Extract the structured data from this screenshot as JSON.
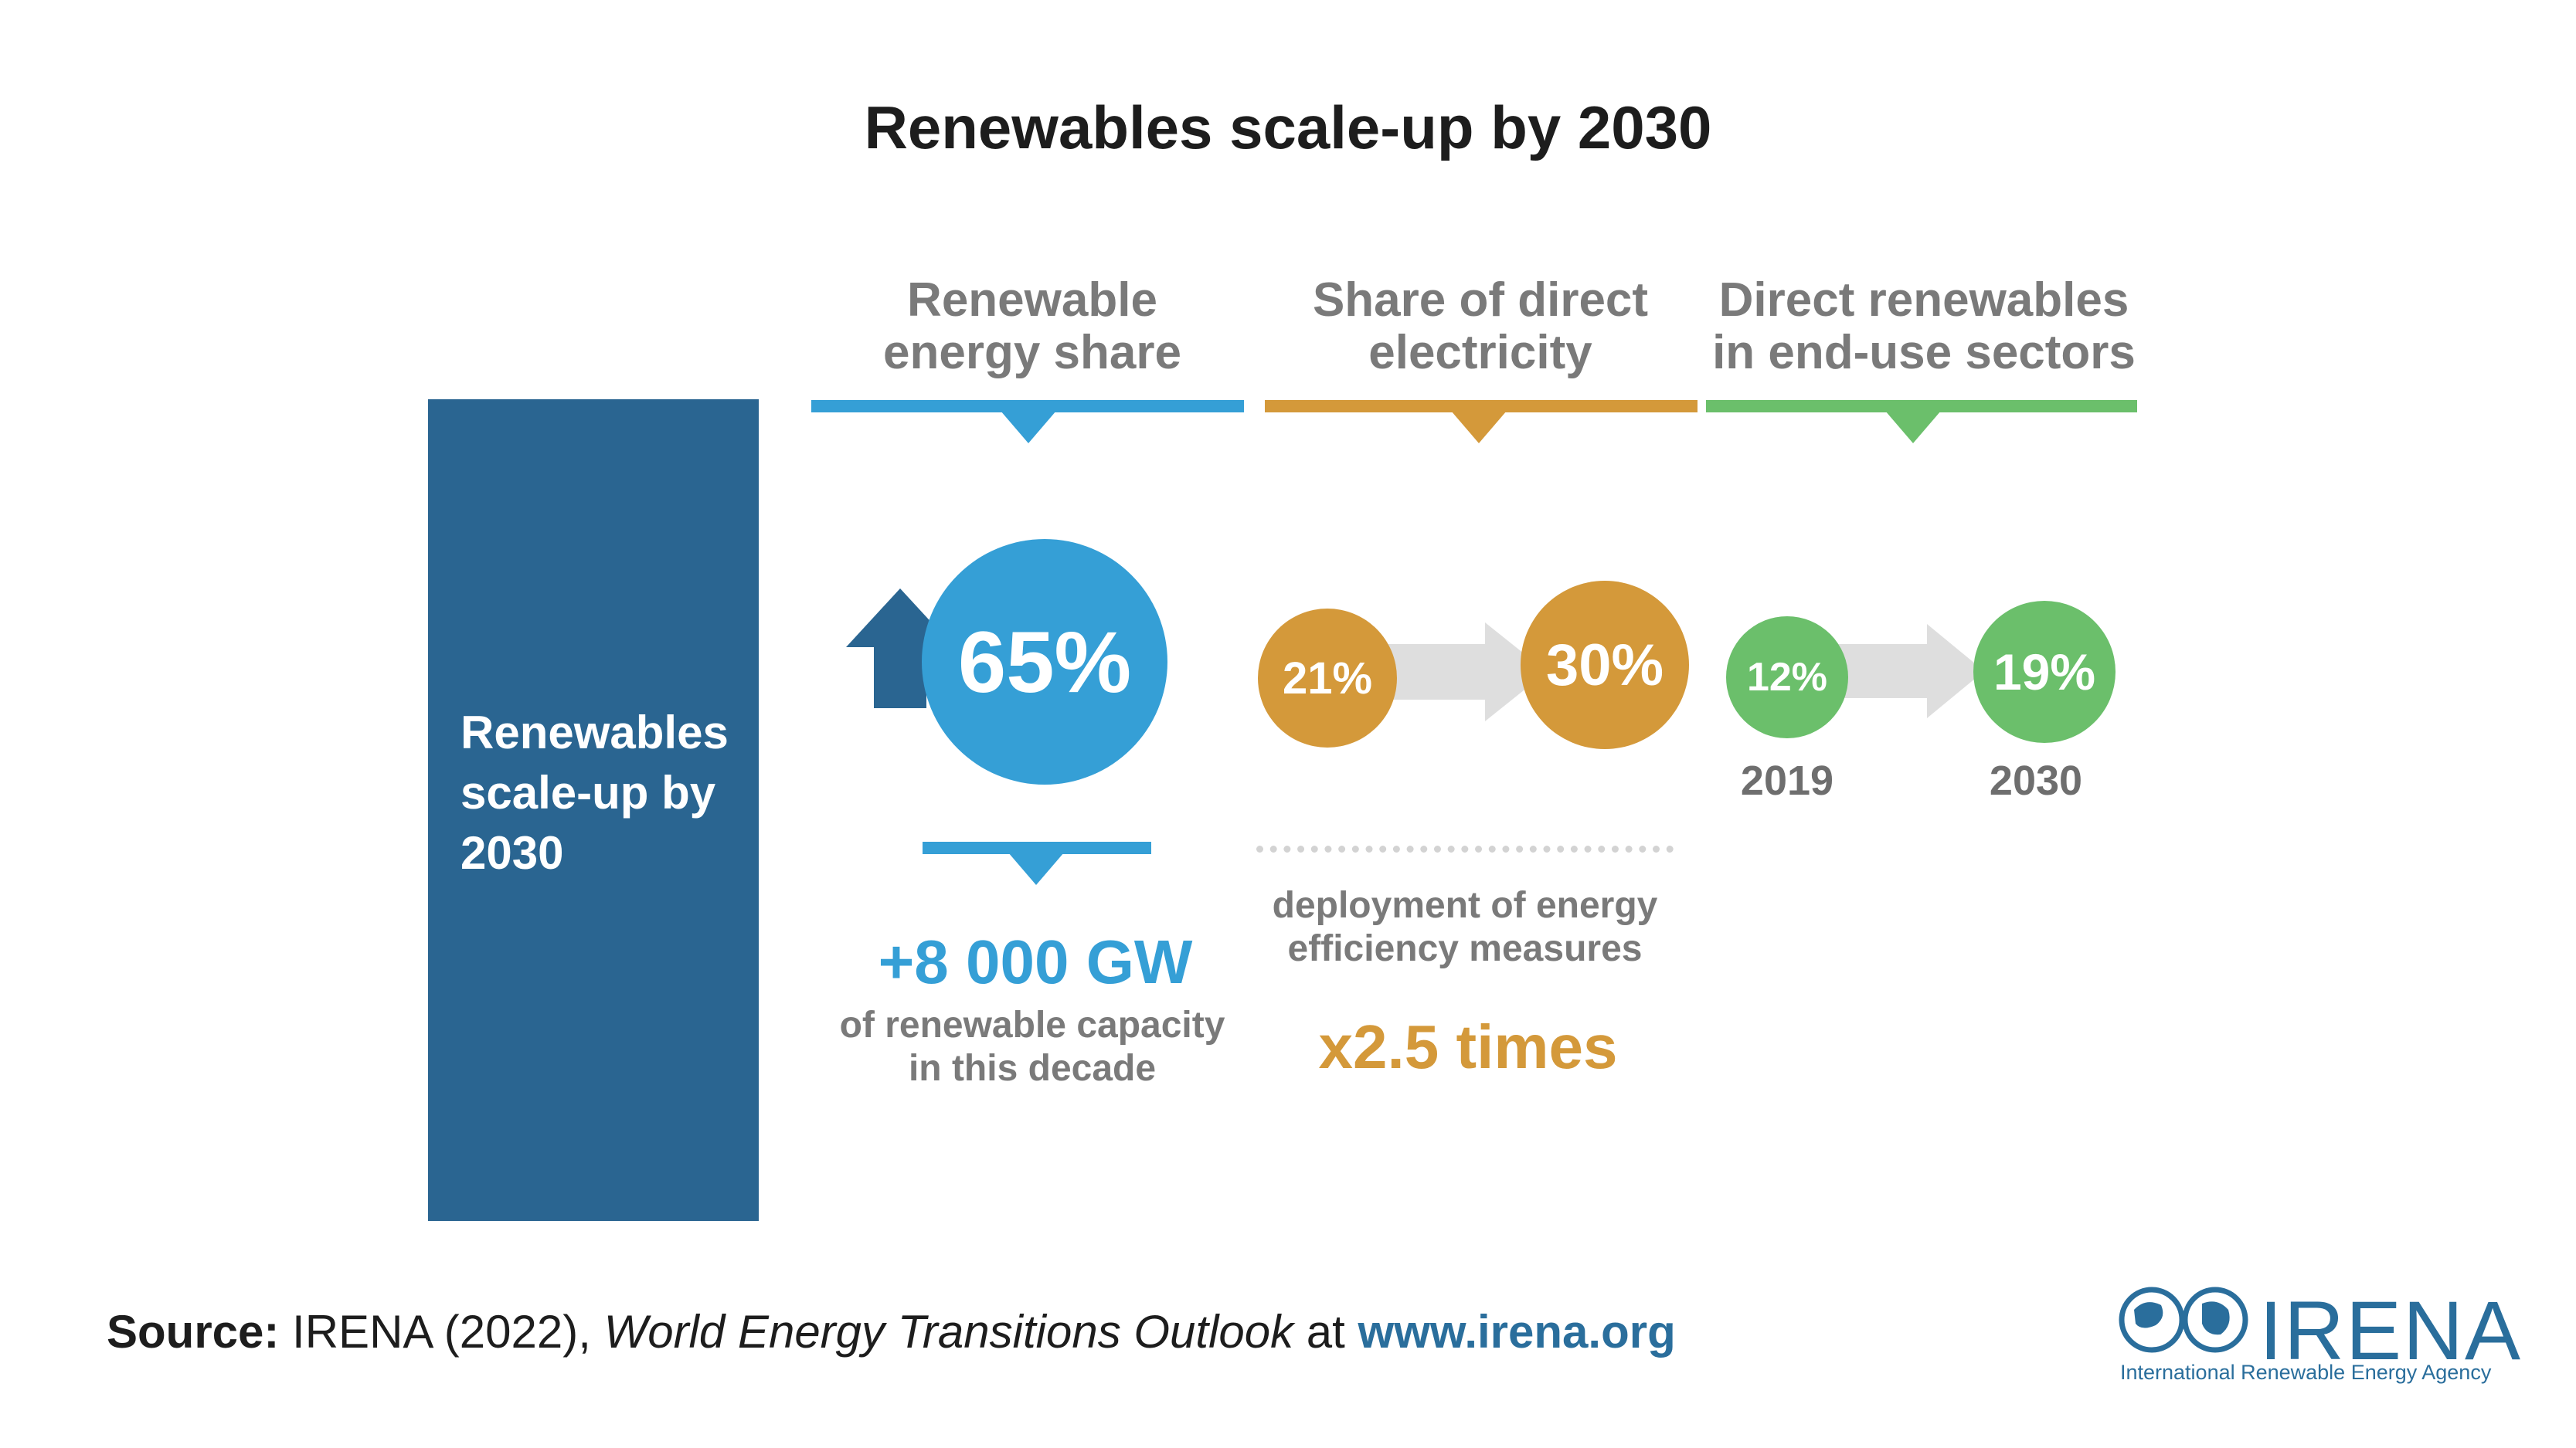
{
  "title": "Renewables scale-up by 2030",
  "left_panel": {
    "text": "Renewables\nscale-up by\n2030"
  },
  "colors": {
    "dark_blue": "#2a6591",
    "blue": "#359fd6",
    "orange": "#d4993a",
    "green": "#6bbf6b",
    "arrow_grey": "#dedede",
    "heading_grey": "#7a7a7a"
  },
  "columns": {
    "renewable_share": {
      "heading": "Renewable\nenergy share",
      "value": "65%",
      "icon": "up-arrow-icon",
      "capacity": "+8 000 GW",
      "capacity_note": "of renewable capacity\nin this decade"
    },
    "direct_electricity": {
      "heading": "Share of direct\nelectricity",
      "from_value": "21%",
      "to_value": "30%",
      "note": "deployment of energy\nefficiency measures",
      "multiplier": "x2.5 times"
    },
    "direct_renewables": {
      "heading": "Direct renewables\nin end-use sectors",
      "from_value": "12%",
      "to_value": "19%",
      "from_year": "2019",
      "to_year": "2030"
    }
  },
  "source": {
    "label": "Source:",
    "org": " IRENA (2022), ",
    "publication": "World Energy Transitions Outlook",
    "at": " at ",
    "url": "www.irena.org"
  },
  "logo": {
    "name": "IRENA",
    "tagline": "International Renewable Energy Agency"
  }
}
